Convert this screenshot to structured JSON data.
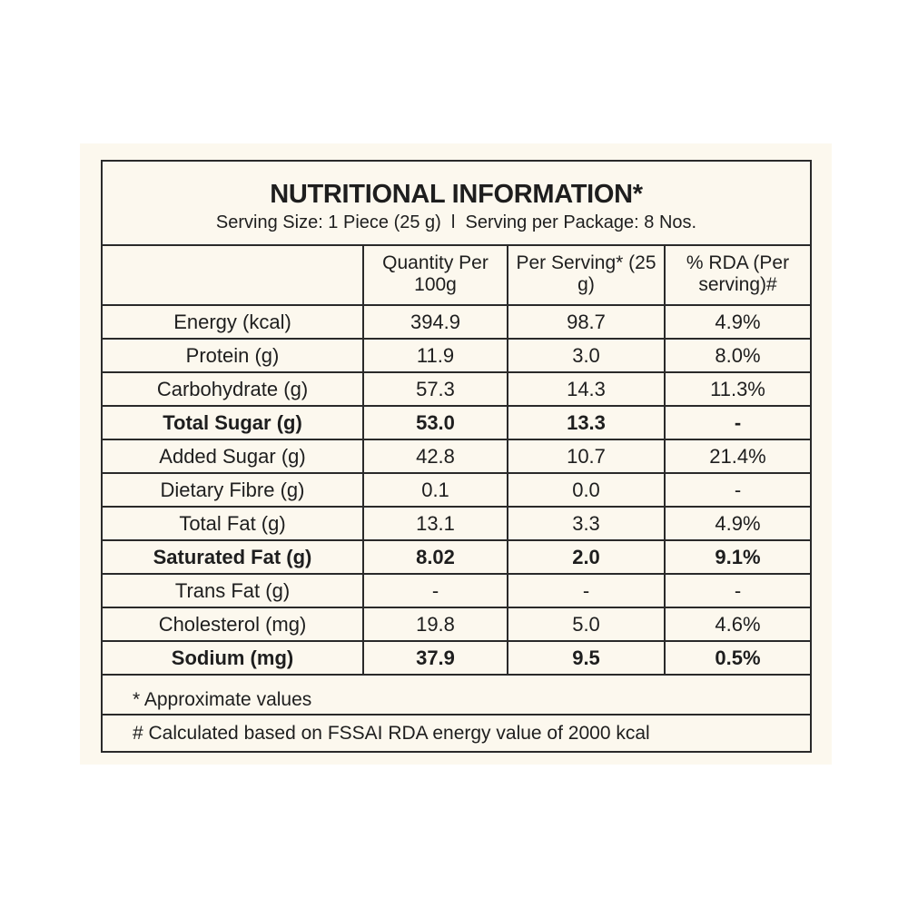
{
  "title": "NUTRITIONAL INFORMATION*",
  "subtitle": "Serving Size: 1 Piece (25 g)  l  Serving per Package: 8 Nos.",
  "headers": {
    "nutrient": "",
    "per100g": "Quantity Per 100g",
    "perServing": "Per Serving* (25 g)",
    "rda": "% RDA (Per serving)#"
  },
  "rows": [
    {
      "name": "Energy (kcal)",
      "per100g": "394.9",
      "perServing": "98.7",
      "rda": "4.9%",
      "bold": false
    },
    {
      "name": "Protein (g)",
      "per100g": "11.9",
      "perServing": "3.0",
      "rda": "8.0%",
      "bold": false
    },
    {
      "name": "Carbohydrate (g)",
      "per100g": "57.3",
      "perServing": "14.3",
      "rda": "11.3%",
      "bold": false
    },
    {
      "name": "Total Sugar (g)",
      "per100g": "53.0",
      "perServing": "13.3",
      "rda": "-",
      "bold": true
    },
    {
      "name": "Added Sugar (g)",
      "per100g": "42.8",
      "perServing": "10.7",
      "rda": "21.4%",
      "bold": false
    },
    {
      "name": "Dietary Fibre (g)",
      "per100g": "0.1",
      "perServing": "0.0",
      "rda": "-",
      "bold": false
    },
    {
      "name": "Total Fat (g)",
      "per100g": "13.1",
      "perServing": "3.3",
      "rda": "4.9%",
      "bold": false
    },
    {
      "name": "Saturated Fat (g)",
      "per100g": "8.02",
      "perServing": "2.0",
      "rda": "9.1%",
      "bold": true
    },
    {
      "name": "Trans Fat (g)",
      "per100g": "-",
      "perServing": "-",
      "rda": "-",
      "bold": false
    },
    {
      "name": "Cholesterol (mg)",
      "per100g": "19.8",
      "perServing": "5.0",
      "rda": "4.6%",
      "bold": false
    },
    {
      "name": "Sodium (mg)",
      "per100g": "37.9",
      "perServing": "9.5",
      "rda": "0.5%",
      "bold": true
    }
  ],
  "notes": {
    "approx": "* Approximate values",
    "rda": "# Calculated based on FSSAI RDA energy value of 2000 kcal"
  }
}
